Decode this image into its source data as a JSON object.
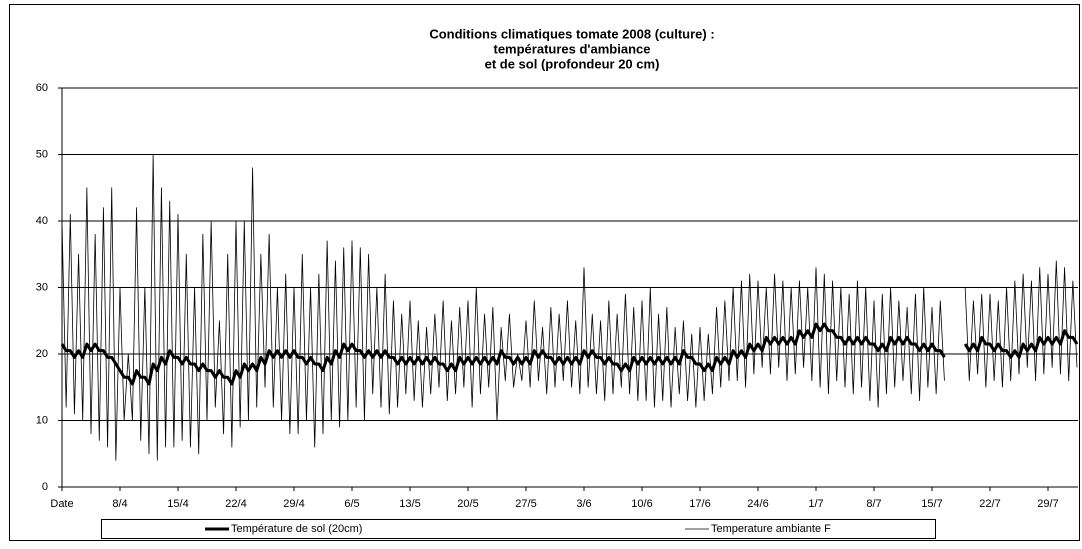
{
  "chart_data": {
    "type": "line",
    "title": [
      "Conditions climatiques tomate 2008 (culture) :",
      "températures d'ambiance",
      "et de sol (profondeur 20 cm)"
    ],
    "categories": [
      "Date",
      null,
      null,
      null,
      null,
      null,
      null,
      null,
      null,
      null,
      null,
      null,
      null,
      null,
      "8/4",
      null,
      null,
      null,
      null,
      null,
      null,
      null,
      null,
      null,
      null,
      null,
      null,
      null,
      "15/4",
      null,
      null,
      null,
      null,
      null,
      null,
      null,
      null,
      null,
      null,
      null,
      null,
      null,
      "22/4",
      null,
      null,
      null,
      null,
      null,
      null,
      null,
      null,
      null,
      null,
      null,
      null,
      null,
      "29/4",
      null,
      null,
      null,
      null,
      null,
      null,
      null,
      null,
      null,
      null,
      null,
      null,
      null,
      "6/5",
      null,
      null,
      null,
      null,
      null,
      null,
      null,
      null,
      null,
      null,
      null,
      null,
      null,
      "13/5",
      null,
      null,
      null,
      null,
      null,
      null,
      null,
      null,
      null,
      null,
      null,
      null,
      null,
      "20/5",
      null,
      null,
      null,
      null,
      null,
      null,
      null,
      null,
      null,
      null,
      null,
      null,
      null,
      "27/5",
      null,
      null,
      null,
      null,
      null,
      null,
      null,
      null,
      null,
      null,
      null,
      null,
      null,
      "3/6",
      null,
      null,
      null,
      null,
      null,
      null,
      null,
      null,
      null,
      null,
      null,
      null,
      null,
      "10/6",
      null,
      null,
      null,
      null,
      null,
      null,
      null,
      null,
      null,
      null,
      null,
      null,
      null,
      "17/6",
      null,
      null,
      null,
      null,
      null,
      null,
      null,
      null,
      null,
      null,
      null,
      null,
      null,
      "24/6",
      null,
      null,
      null,
      null,
      null,
      null,
      null,
      null,
      null,
      null,
      null,
      null,
      null,
      "1/7",
      null,
      null,
      null,
      null,
      null,
      null,
      null,
      null,
      null,
      null,
      null,
      null,
      null,
      "8/7",
      null,
      null,
      null,
      null,
      null,
      null,
      null,
      null,
      null,
      null,
      null,
      null,
      null,
      "15/7",
      null,
      null,
      null,
      null,
      null,
      null,
      null,
      null,
      null,
      null,
      null,
      null,
      null,
      "22/7",
      null,
      null,
      null,
      null,
      null,
      null,
      null,
      null,
      null,
      null,
      null,
      null,
      null,
      "29/7",
      null,
      null,
      null,
      null,
      null,
      null,
      null
    ],
    "series": [
      {
        "name": "Température de sol (20cm)",
        "color": "#000000",
        "width": 3,
        "values": [
          21.5,
          20.5,
          20.5,
          19.5,
          20.5,
          19.5,
          21.5,
          20.5,
          21.5,
          20.5,
          20.5,
          19.5,
          19.5,
          18.5,
          17.5,
          16.5,
          16.5,
          15.5,
          17.5,
          16.5,
          16.5,
          15.5,
          18.5,
          17.5,
          19.5,
          18.5,
          20.5,
          19.5,
          19.5,
          18.5,
          19.5,
          18.5,
          18.5,
          17.5,
          18.5,
          17.5,
          17.5,
          16.5,
          17.5,
          16.5,
          16.5,
          15.5,
          17.5,
          16.5,
          18.5,
          17.5,
          18.5,
          17.5,
          19.5,
          18.5,
          20.5,
          19.5,
          20.5,
          19.5,
          20.5,
          19.5,
          20.5,
          19.5,
          19.5,
          18.5,
          19.5,
          18.5,
          18.5,
          17.5,
          19.5,
          18.5,
          20.5,
          19.5,
          21.5,
          20.5,
          21.5,
          20.5,
          20.5,
          19.5,
          20.5,
          19.5,
          20.5,
          19.5,
          20.5,
          19.5,
          19.5,
          18.5,
          19.5,
          18.5,
          19.5,
          18.5,
          19.5,
          18.5,
          19.5,
          18.5,
          19.5,
          18.5,
          18.5,
          17.5,
          18.5,
          17.5,
          19.5,
          18.5,
          19.5,
          18.5,
          19.5,
          18.5,
          19.5,
          18.5,
          19.5,
          18.5,
          20.5,
          19.5,
          19.5,
          18.5,
          19.5,
          18.5,
          19.5,
          18.5,
          20.5,
          19.5,
          20.5,
          19.5,
          19.5,
          18.5,
          19.5,
          18.5,
          19.5,
          18.5,
          19.5,
          18.5,
          20.5,
          19.5,
          20.5,
          19.5,
          19.5,
          18.5,
          19.5,
          18.5,
          18.5,
          17.5,
          18.5,
          17.5,
          19.5,
          18.5,
          19.5,
          18.5,
          19.5,
          18.5,
          19.5,
          18.5,
          19.5,
          18.5,
          19.5,
          18.5,
          20.5,
          19.5,
          19.5,
          18.5,
          18.5,
          17.5,
          18.5,
          17.5,
          19.5,
          18.5,
          19.5,
          18.5,
          20.5,
          19.5,
          20.5,
          19.5,
          21.5,
          20.5,
          21.5,
          20.5,
          22.5,
          21.5,
          22.5,
          21.5,
          22.5,
          21.5,
          22.5,
          21.5,
          23.5,
          22.5,
          23.5,
          22.5,
          24.5,
          23.5,
          24.5,
          23.5,
          23.5,
          22.5,
          22.5,
          21.5,
          22.5,
          21.5,
          22.5,
          21.5,
          22.5,
          21.5,
          21.5,
          20.5,
          21.5,
          20.5,
          22.5,
          21.5,
          22.5,
          21.5,
          22.5,
          21.5,
          21.5,
          20.5,
          21.5,
          20.5,
          21.5,
          20.5,
          20.5,
          19.5,
          null,
          null,
          null,
          null,
          21.5,
          20.5,
          21.5,
          20.5,
          22.5,
          21.5,
          21.5,
          20.5,
          21.5,
          20.5,
          20.5,
          19.5,
          20.5,
          19.5,
          21.5,
          20.5,
          21.5,
          20.5,
          22.5,
          21.5,
          22.5,
          21.5,
          22.5,
          21.5,
          23.5,
          22.5,
          22.5,
          21.5
        ]
      },
      {
        "name": "Temperature ambiante F",
        "color": "#000000",
        "width": 0.8,
        "values": [
          40,
          12,
          41,
          11,
          35,
          10,
          45,
          8,
          38,
          7,
          42,
          6,
          45,
          4,
          30,
          10,
          20,
          10,
          42,
          7,
          30,
          5,
          50,
          4,
          45,
          6,
          43,
          6,
          41,
          7,
          35,
          6,
          30,
          5,
          38,
          10,
          40,
          12,
          25,
          8,
          35,
          6,
          40,
          9,
          40,
          10,
          48,
          12,
          35,
          15,
          38,
          12,
          30,
          10,
          32,
          8,
          30,
          8,
          35,
          10,
          30,
          6,
          32,
          8,
          37,
          10,
          34,
          9,
          36,
          10,
          37,
          12,
          36,
          10,
          35,
          14,
          30,
          12,
          32,
          11,
          28,
          12,
          26,
          14,
          28,
          13,
          25,
          12,
          24,
          14,
          26,
          15,
          28,
          13,
          25,
          14,
          27,
          15,
          28,
          12,
          30,
          14,
          26,
          15,
          27,
          10,
          24,
          16,
          26,
          15,
          20,
          16,
          25,
          15,
          28,
          16,
          24,
          14,
          27,
          15,
          26,
          16,
          28,
          15,
          25,
          14,
          33,
          15,
          26,
          14,
          25,
          13,
          28,
          14,
          26,
          15,
          29,
          14,
          27,
          13,
          28,
          13,
          30,
          12,
          26,
          13,
          27,
          12,
          24,
          14,
          25,
          13,
          23,
          12,
          24,
          13,
          23,
          14,
          27,
          15,
          28,
          16,
          30,
          16,
          31,
          15,
          32,
          17,
          31,
          18,
          30,
          17,
          32,
          18,
          31,
          16,
          30,
          17,
          31,
          18,
          30,
          16,
          33,
          15,
          32,
          14,
          31,
          16,
          30,
          15,
          29,
          14,
          31,
          15,
          30,
          13,
          28,
          12,
          29,
          14,
          30,
          15,
          28,
          16,
          27,
          14,
          29,
          13,
          30,
          15,
          27,
          14,
          28,
          16,
          null,
          null,
          null,
          null,
          30,
          16,
          28,
          17,
          29,
          15,
          29,
          16,
          28,
          15,
          30,
          16,
          31,
          17,
          32,
          18,
          31,
          16,
          33,
          17,
          32,
          18,
          34,
          17,
          33,
          16,
          31,
          18
        ]
      }
    ],
    "ylim": [
      0,
      60
    ],
    "yticks": [
      0,
      10,
      20,
      30,
      40,
      50,
      60
    ],
    "grid": true,
    "legend": "bottom"
  }
}
